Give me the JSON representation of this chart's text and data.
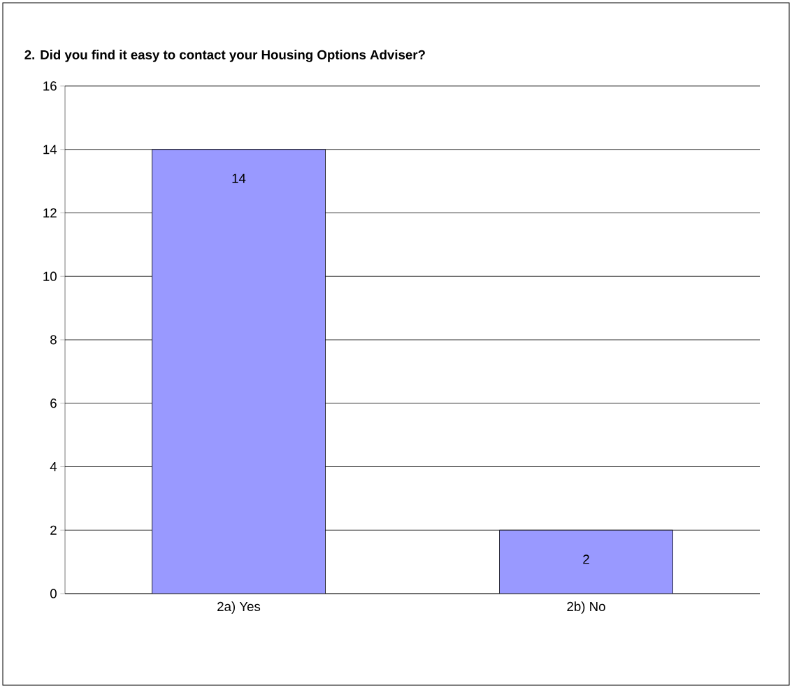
{
  "chart_data": {
    "type": "bar",
    "title": "2. Did you find it easy to contact your Housing Options Adviser?",
    "categories": [
      "2a) Yes",
      "2b) No"
    ],
    "values": [
      14,
      2
    ],
    "color": "#9999ff",
    "ylim": [
      0,
      16
    ],
    "yticks": [
      0,
      2,
      4,
      6,
      8,
      10,
      12,
      14,
      16
    ],
    "grid": "y",
    "data_labels": true
  }
}
